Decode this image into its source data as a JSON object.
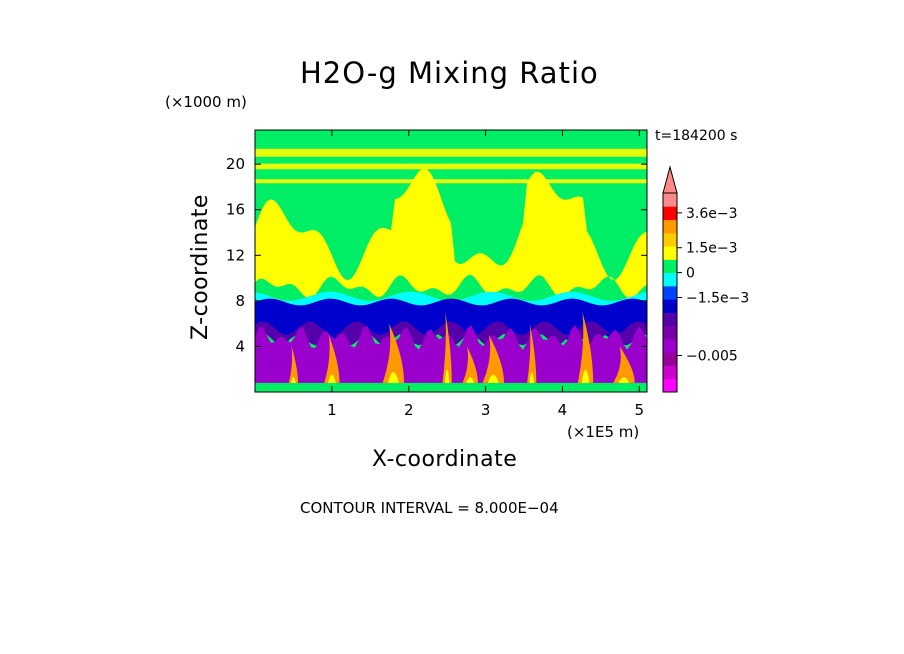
{
  "chart_data": {
    "type": "heatmap",
    "title": "H2O-g Mixing Ratio",
    "xlabel": "X-coordinate",
    "ylabel": "Z-coordinate",
    "x_unit": "(×1E5 m)",
    "y_unit": "(×1000 m)",
    "time_label": "t=184200 s",
    "contour_interval_text": "CONTOUR INTERVAL = 8.000E−04",
    "xlim": [
      0,
      5.1
    ],
    "ylim": [
      0,
      23
    ],
    "x_ticks": [
      {
        "value": 1,
        "label": "1"
      },
      {
        "value": 2,
        "label": "2"
      },
      {
        "value": 3,
        "label": "3"
      },
      {
        "value": 4,
        "label": "4"
      },
      {
        "value": 5,
        "label": "5"
      }
    ],
    "y_ticks": [
      {
        "value": 4,
        "label": "4"
      },
      {
        "value": 8,
        "label": "8"
      },
      {
        "value": 12,
        "label": "12"
      },
      {
        "value": 16,
        "label": "16"
      },
      {
        "value": 20,
        "label": "20"
      }
    ],
    "colorbar": {
      "levels": [
        {
          "value": -0.0068,
          "color": "#ff00ff"
        },
        {
          "value": -0.006,
          "color": "#cc00cc"
        },
        {
          "value": -0.0052,
          "color": "#990099"
        },
        {
          "value": -0.0044,
          "color": "#9900cc"
        },
        {
          "value": -0.0036,
          "color": "#7700aa"
        },
        {
          "value": -0.0028,
          "color": "#5500aa"
        },
        {
          "value": -0.002,
          "color": "#0000cc"
        },
        {
          "value": -0.0012,
          "color": "#0044ff"
        },
        {
          "value": -0.0004,
          "color": "#00ffff"
        },
        {
          "value": 0.0004,
          "color": "#00ee66"
        },
        {
          "value": 0.0012,
          "color": "#ffff00"
        },
        {
          "value": 0.002,
          "color": "#ffcc00"
        },
        {
          "value": 0.0028,
          "color": "#ff9900"
        },
        {
          "value": 0.0036,
          "color": "#ff0000"
        },
        {
          "value": 0.0044,
          "color": "#ff8888"
        }
      ],
      "labels": [
        {
          "value": 0.0036,
          "text": "3.6e−3"
        },
        {
          "value": 0.0015,
          "text": "1.5e−3"
        },
        {
          "value": 0,
          "text": "0"
        },
        {
          "value": -0.0015,
          "text": "−1.5e−3"
        },
        {
          "value": -0.005,
          "text": "−0.005"
        }
      ],
      "extend": "max",
      "placement": "right"
    },
    "field_description_layers": [
      {
        "name": "upper-green",
        "value_range": [
          0,
          0.0008
        ],
        "z_range": [
          17,
          23
        ]
      },
      {
        "name": "yellow-band",
        "value_range": [
          0.0008,
          0.0016
        ],
        "z_range": [
          8,
          17
        ]
      },
      {
        "name": "cyan-layer",
        "value_range": [
          -0.0008,
          0
        ],
        "z_range": [
          7,
          9
        ]
      },
      {
        "name": "blue-layer",
        "value_range": [
          -0.0024,
          -0.0008
        ],
        "z_range": [
          5,
          8
        ]
      },
      {
        "name": "purple-base",
        "value_range": [
          -0.0056,
          -0.0024
        ],
        "z_range": [
          0.5,
          5
        ]
      }
    ]
  }
}
